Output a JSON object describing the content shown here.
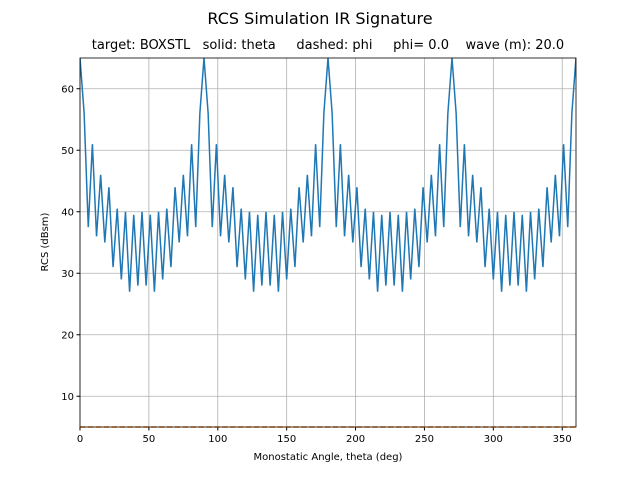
{
  "chart_data": {
    "type": "line",
    "title": "RCS Simulation IR Signature",
    "subtitle": "target: BOXSTL   solid: theta     dashed: phi     phi= 0.0    wave (m): 20.0",
    "xlabel": "Monostatic Angle, theta (deg)",
    "ylabel": "RCS (dBsm)",
    "x": [
      0,
      3,
      6,
      9,
      12,
      15,
      18,
      21,
      24,
      27,
      30,
      33,
      36,
      39,
      42,
      45,
      48,
      51,
      54,
      57,
      60,
      63,
      66,
      69,
      72,
      75,
      78,
      81,
      84,
      87,
      90,
      93,
      96,
      99,
      102,
      105,
      108,
      111,
      114,
      117,
      120,
      123,
      126,
      129,
      132,
      135,
      138,
      141,
      144,
      147,
      150,
      153,
      156,
      159,
      162,
      165,
      168,
      171,
      174,
      177,
      180,
      183,
      186,
      189,
      192,
      195,
      198,
      201,
      204,
      207,
      210,
      213,
      216,
      219,
      222,
      225,
      228,
      231,
      234,
      237,
      240,
      243,
      246,
      249,
      252,
      255,
      258,
      261,
      264,
      267,
      270,
      273,
      276,
      279,
      282,
      285,
      288,
      291,
      294,
      297,
      300,
      303,
      306,
      309,
      312,
      315,
      318,
      321,
      324,
      327,
      330,
      333,
      336,
      339,
      342,
      345,
      348,
      351,
      354,
      357,
      360
    ],
    "series": [
      {
        "color": "#1f77b4",
        "linestyle": "solid",
        "values": [
          65,
          56,
          37.5,
          51,
          36,
          46,
          35,
          44,
          31,
          40.5,
          29,
          40,
          27,
          39.5,
          28,
          40,
          28,
          39.5,
          27,
          40,
          29,
          40.5,
          31,
          44,
          35,
          46,
          36,
          51,
          37.5,
          56,
          65,
          56,
          37.5,
          51,
          36,
          46,
          35,
          44,
          31,
          40.5,
          29,
          40,
          27,
          39.5,
          28,
          40,
          28,
          39.5,
          27,
          40,
          29,
          40.5,
          31,
          44,
          35,
          46,
          36,
          51,
          37.5,
          56,
          65,
          56,
          37.5,
          51,
          36,
          46,
          35,
          44,
          31,
          40.5,
          29,
          40,
          27,
          39.5,
          28,
          40,
          28,
          39.5,
          27,
          40,
          29,
          40.5,
          31,
          44,
          35,
          46,
          36,
          51,
          37.5,
          56,
          65,
          56,
          37.5,
          51,
          36,
          46,
          35,
          44,
          31,
          40.5,
          29,
          40,
          27,
          39.5,
          28,
          40,
          28,
          39.5,
          27,
          40,
          29,
          40.5,
          31,
          44,
          35,
          46,
          36,
          51,
          37.5,
          56,
          65
        ]
      },
      {
        "color": "#ff7f0e",
        "linestyle": "dashed",
        "values": [
          5,
          5,
          5,
          5,
          5,
          5,
          5,
          5,
          5,
          5,
          5,
          5,
          5,
          5,
          5,
          5,
          5,
          5,
          5,
          5,
          5,
          5,
          5,
          5,
          5,
          5,
          5,
          5,
          5,
          5,
          5,
          5,
          5,
          5,
          5,
          5,
          5,
          5,
          5,
          5,
          5,
          5,
          5,
          5,
          5,
          5,
          5,
          5,
          5,
          5,
          5,
          5,
          5,
          5,
          5,
          5,
          5,
          5,
          5,
          5,
          5,
          5,
          5,
          5,
          5,
          5,
          5,
          5,
          5,
          5,
          5,
          5,
          5,
          5,
          5,
          5,
          5,
          5,
          5,
          5,
          5,
          5,
          5,
          5,
          5,
          5,
          5,
          5,
          5,
          5,
          5,
          5,
          5,
          5,
          5,
          5,
          5,
          5,
          5,
          5,
          5,
          5,
          5,
          5,
          5,
          5,
          5,
          5,
          5,
          5,
          5,
          5,
          5,
          5,
          5,
          5,
          5,
          5,
          5,
          5,
          5
        ]
      }
    ],
    "xlim": [
      0,
      360
    ],
    "xticks": [
      0,
      50,
      100,
      150,
      200,
      250,
      300,
      350
    ],
    "ylim": [
      5,
      65
    ],
    "yticks": [
      10,
      20,
      30,
      40,
      50,
      60
    ],
    "grid": true
  }
}
